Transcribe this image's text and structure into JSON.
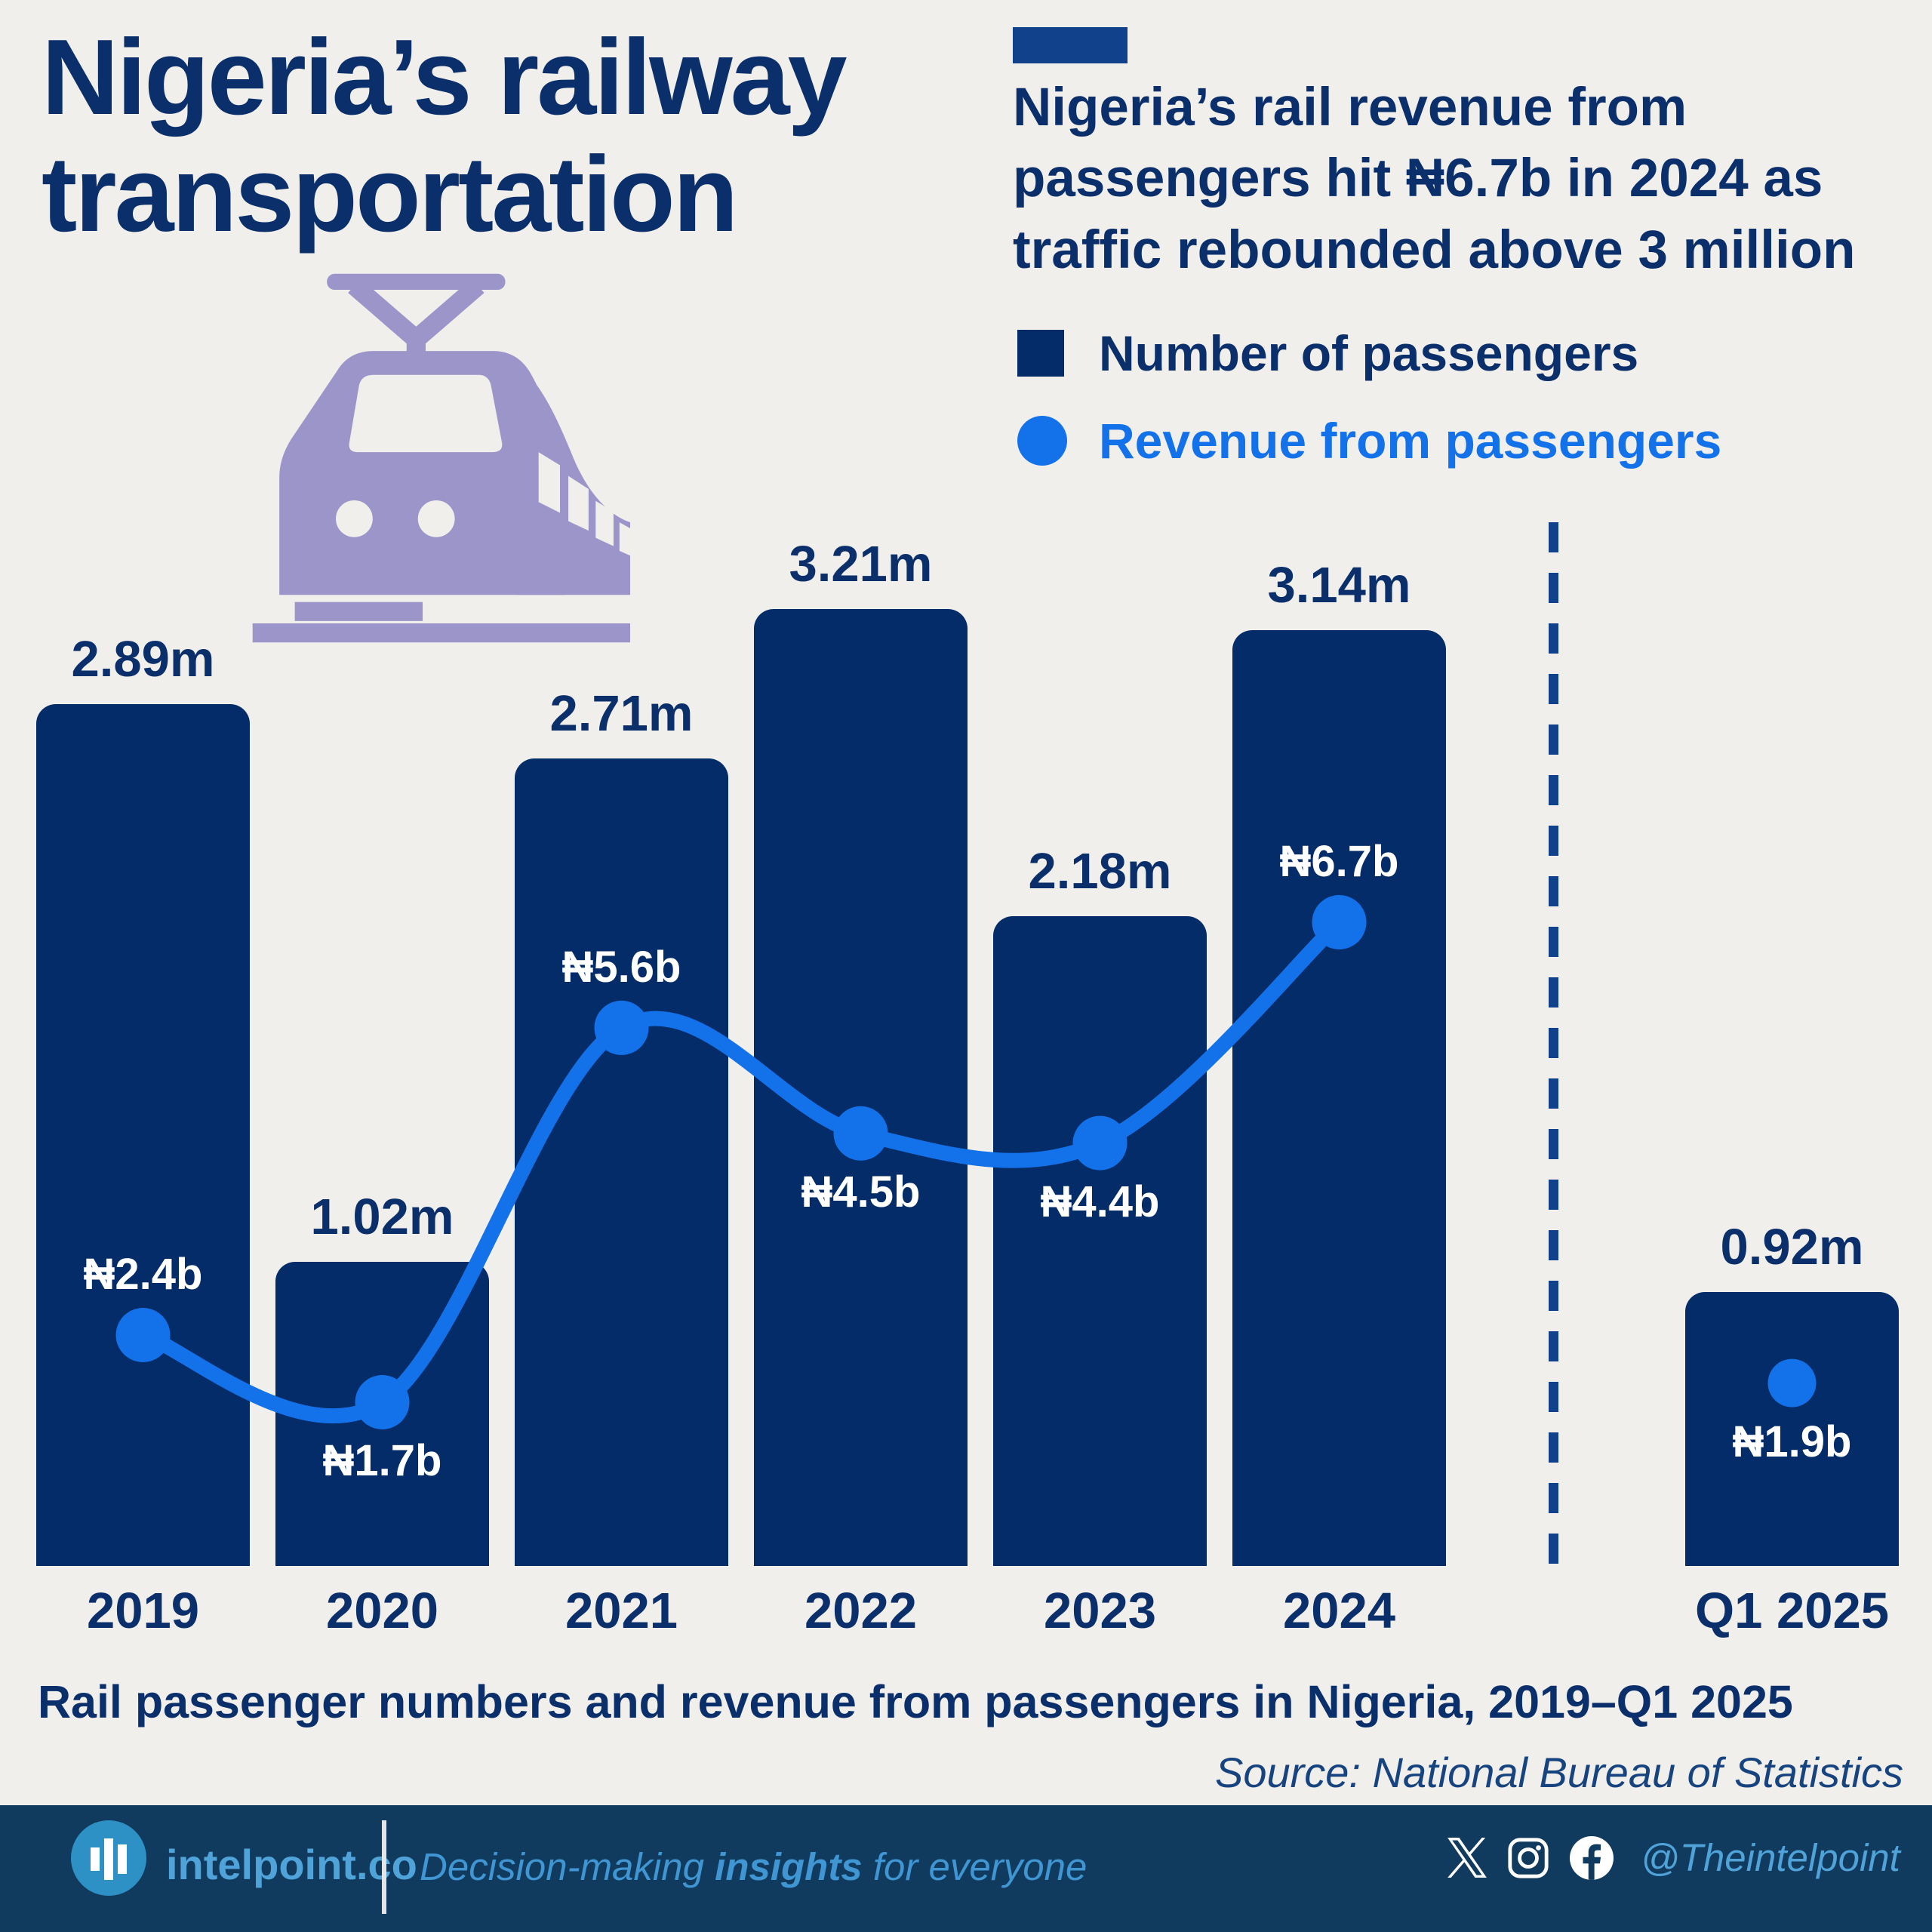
{
  "header": {
    "title_lines": [
      "Nigeria’s railway",
      "transportation"
    ],
    "subtitle_lines": [
      "Nigeria’s rail revenue from",
      "passengers hit ₦6.7b in 2024 as",
      "traffic rebounded above 3 million"
    ]
  },
  "legend": {
    "items": [
      {
        "label": "Number of passengers",
        "swatch": "square",
        "color": "#042c68",
        "text_color": "#0b2f6b"
      },
      {
        "label": "Revenue from passengers",
        "swatch": "circle",
        "color": "#1372e9",
        "text_color": "#1372e9"
      }
    ]
  },
  "colors": {
    "background": "#f0efeb",
    "navy_bar": "#042c68",
    "navy_text": "#0b2f6b",
    "accent_navy": "#12418c",
    "line_blue": "#1372e9",
    "train_lavender": "#9b95c9",
    "footer_navy": "#113a5f",
    "footer_blue": "#4fa3d8",
    "white": "#ffffff"
  },
  "chart_data": {
    "type": "bar+line",
    "title": "Rail passenger numbers and revenue from passengers in Nigeria, 2019–Q1 2025",
    "categories": [
      "2019",
      "2020",
      "2021",
      "2022",
      "2023",
      "2024",
      "Q1 2025"
    ],
    "series": [
      {
        "name": "Number of passengers",
        "type": "bar",
        "unit": "million passengers",
        "values": [
          2.89,
          1.02,
          2.71,
          3.21,
          2.18,
          3.14,
          0.92
        ],
        "labels": [
          "2.89m",
          "1.02m",
          "2.71m",
          "3.21m",
          "2.18m",
          "3.14m",
          "0.92m"
        ],
        "color": "#042c68"
      },
      {
        "name": "Revenue from passengers",
        "type": "line",
        "unit": "billion naira",
        "values": [
          2.4,
          1.7,
          5.6,
          4.5,
          4.4,
          6.7,
          1.9
        ],
        "labels": [
          "₦2.4b",
          "₦1.7b",
          "₦5.6b",
          "₦4.5b",
          "₦4.4b",
          "₦6.7b",
          "₦1.9b"
        ],
        "color": "#1372e9",
        "line_through_categories": [
          "2019",
          "2020",
          "2021",
          "2022",
          "2023",
          "2024"
        ],
        "isolated_point": "Q1 2025"
      }
    ],
    "separator": {
      "between": [
        "2024",
        "Q1 2025"
      ],
      "style": "dashed-vertical",
      "color": "#12418c"
    },
    "clipped_partial_label": "2025",
    "grid": false,
    "value_labels_shown": true,
    "legend_position": "top-right"
  },
  "caption": "Rail passenger numbers and revenue from passengers in Nigeria, 2019–Q1 2025",
  "source": "Source: National Bureau of Statistics",
  "footer": {
    "brand": "intelpoint.co",
    "tagline_pre": "Decision-making ",
    "tagline_bold": "insights",
    "tagline_post": " for everyone",
    "handle": "@Theintelpoint",
    "icons": [
      "x-logo",
      "instagram",
      "facebook"
    ]
  }
}
